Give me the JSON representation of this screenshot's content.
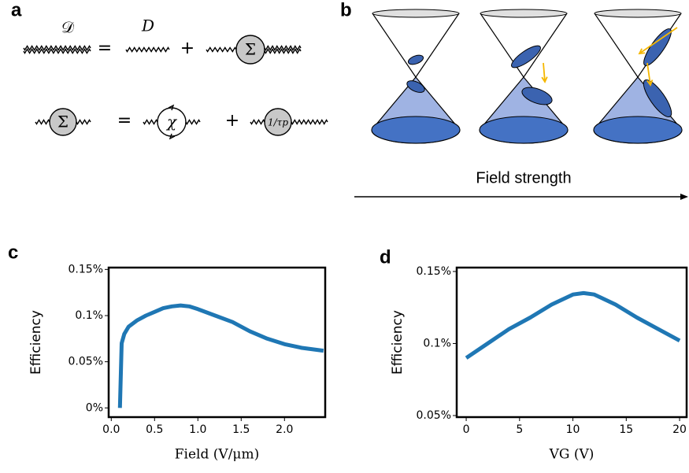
{
  "panel_labels": [
    "a",
    "b",
    "c",
    "d"
  ],
  "diagram_a": {
    "row1": [
      "𝒟",
      "=",
      "D",
      "+",
      "Σ"
    ],
    "row2": [
      "Σ",
      "=",
      "χ",
      "+",
      "1/τp"
    ]
  },
  "diagram_b": {
    "axis_label": "Field strength"
  },
  "chart_data": [
    {
      "type": "line",
      "x_label": "Field (V/μm)",
      "y_label": "Efficiency",
      "color": "#1f77b4",
      "x": [
        0.1,
        0.12,
        0.15,
        0.2,
        0.3,
        0.4,
        0.5,
        0.6,
        0.7,
        0.8,
        0.9,
        1.0,
        1.2,
        1.4,
        1.6,
        1.8,
        2.0,
        2.2,
        2.45
      ],
      "values": [
        0,
        0.07,
        0.08,
        0.088,
        0.095,
        0.1,
        0.104,
        0.108,
        0.11,
        0.111,
        0.11,
        0.107,
        0.1,
        0.093,
        0.083,
        0.075,
        0.069,
        0.065,
        0.062
      ],
      "xlim": [
        -0.03,
        2.47
      ],
      "ylim": [
        -0.01,
        0.152
      ],
      "xticks": [
        {
          "value": 0,
          "label": "0.0"
        },
        0.5,
        {
          "value": 1,
          "label": "1.0"
        },
        1.5,
        {
          "value": 2,
          "label": "2.0"
        }
      ],
      "yticks": [
        {
          "value": 0,
          "label": "0%"
        },
        {
          "value": 0.05,
          "label": "0.05%"
        },
        {
          "value": 0.1,
          "label": "0.1%"
        },
        {
          "value": 0.15,
          "label": "0.15%"
        }
      ]
    },
    {
      "type": "line",
      "x_label": "VG (V)",
      "y_label": "Efficiency",
      "color": "#1f77b4",
      "x": [
        0,
        2,
        4,
        6,
        8,
        10,
        11,
        12,
        14,
        16,
        18,
        20
      ],
      "values": [
        0.09,
        0.1,
        0.11,
        0.118,
        0.127,
        0.134,
        0.135,
        0.134,
        0.127,
        0.118,
        0.11,
        0.102
      ],
      "xlim": [
        -0.89,
        20.66
      ],
      "ylim": [
        0.0489,
        0.1527
      ],
      "xticks": [
        0,
        5,
        10,
        15,
        20
      ],
      "yticks": [
        {
          "value": 0.05,
          "label": "0.05%"
        },
        {
          "value": 0.1,
          "label": "0.1%"
        },
        {
          "value": 0.15,
          "label": "0.15%"
        }
      ]
    }
  ]
}
